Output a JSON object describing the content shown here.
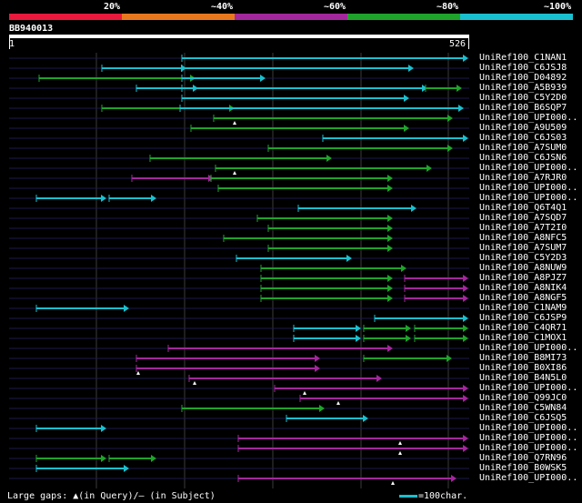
{
  "query_id": "BB940013",
  "scale": {
    "start": "1",
    "end": "526"
  },
  "identity_legend": [
    {
      "label": "20%",
      "color": "#e8193c"
    },
    {
      "label": "~40%",
      "color": "#e8781e"
    },
    {
      "label": "~60%",
      "color": "#a3279c"
    },
    {
      "label": "~80%",
      "color": "#1fa32b"
    },
    {
      "label": "~100%",
      "color": "#19c0cf"
    }
  ],
  "footer": {
    "gaps_label": "Large gaps: ▲(in Query)/– (in Subject)",
    "scale_label": "=100char.",
    "scale_color": "#19c0cf"
  },
  "colors": {
    "cyan": "#19c0cf",
    "green": "#1fa32b",
    "magenta": "#a3279c",
    "grid": "#3a3a3a",
    "row": "#1a1a4a"
  },
  "hits": [
    {
      "name": "UniRef100_C1NAN1",
      "segs": [
        [
          200,
          515,
          "cyan"
        ]
      ]
    },
    {
      "name": "UniRef100_C6JSJ8",
      "segs": [
        [
          112,
          205,
          "cyan"
        ],
        [
          200,
          455,
          "cyan"
        ]
      ]
    },
    {
      "name": "UniRef100_D04892",
      "segs": [
        [
          43,
          215,
          "green"
        ],
        [
          200,
          292,
          "cyan"
        ]
      ]
    },
    {
      "name": "UniRef100_A5B939",
      "segs": [
        [
          150,
          218,
          "cyan"
        ],
        [
          200,
          470,
          "cyan"
        ],
        [
          468,
          508,
          "green"
        ]
      ]
    },
    {
      "name": "UniRef100_C5Y2D0",
      "segs": [
        [
          200,
          450,
          "cyan"
        ]
      ]
    },
    {
      "name": "UniRef100_B6SQP7",
      "segs": [
        [
          112,
          258,
          "green"
        ],
        [
          198,
          510,
          "cyan"
        ]
      ]
    },
    {
      "name": "UniRef100_UPI000..",
      "segs": [
        [
          235,
          498,
          "green"
        ]
      ],
      "gapq": [
        258
      ]
    },
    {
      "name": "UniRef100_A9U509",
      "segs": [
        [
          210,
          450,
          "green"
        ]
      ]
    },
    {
      "name": "UniRef100_C6JS03",
      "segs": [
        [
          355,
          515,
          "cyan"
        ]
      ]
    },
    {
      "name": "UniRef100_A7SUM0",
      "segs": [
        [
          295,
          498,
          "green"
        ]
      ]
    },
    {
      "name": "UniRef100_C6JSN6",
      "segs": [
        [
          165,
          365,
          "green"
        ]
      ]
    },
    {
      "name": "UniRef100_UPI000..",
      "segs": [
        [
          237,
          475,
          "green"
        ]
      ],
      "gapq": [
        258
      ]
    },
    {
      "name": "UniRef100_A7RJR0",
      "segs": [
        [
          145,
          235,
          "magenta"
        ],
        [
          232,
          432,
          "green"
        ]
      ]
    },
    {
      "name": "UniRef100_UPI000..",
      "segs": [
        [
          240,
          432,
          "green"
        ]
      ]
    },
    {
      "name": "UniRef100_UPI000..",
      "segs": [
        [
          40,
          117,
          "cyan"
        ],
        [
          120,
          172,
          "cyan"
        ]
      ]
    },
    {
      "name": "UniRef100_Q6T4Q1",
      "segs": [
        [
          328,
          458,
          "cyan"
        ]
      ]
    },
    {
      "name": "UniRef100_A7SQD7",
      "segs": [
        [
          283,
          432,
          "green"
        ]
      ]
    },
    {
      "name": "UniRef100_A7T2I0",
      "segs": [
        [
          295,
          432,
          "green"
        ]
      ]
    },
    {
      "name": "UniRef100_A8NFC5",
      "segs": [
        [
          246,
          432,
          "green"
        ]
      ]
    },
    {
      "name": "UniRef100_A7SUM7",
      "segs": [
        [
          295,
          432,
          "green"
        ]
      ]
    },
    {
      "name": "UniRef100_C5Y2D3",
      "segs": [
        [
          260,
          387,
          "cyan"
        ]
      ]
    },
    {
      "name": "UniRef100_A8NUW9",
      "segs": [
        [
          287,
          447,
          "green"
        ]
      ]
    },
    {
      "name": "UniRef100_A8PJZ7",
      "segs": [
        [
          287,
          432,
          "green"
        ],
        [
          445,
          515,
          "magenta"
        ]
      ]
    },
    {
      "name": "UniRef100_A8NIK4",
      "segs": [
        [
          287,
          432,
          "green"
        ],
        [
          445,
          515,
          "magenta"
        ]
      ]
    },
    {
      "name": "UniRef100_A8NGF5",
      "segs": [
        [
          287,
          432,
          "green"
        ],
        [
          445,
          515,
          "magenta"
        ]
      ]
    },
    {
      "name": "UniRef100_C1NAM9",
      "segs": [
        [
          40,
          142,
          "cyan"
        ]
      ]
    },
    {
      "name": "UniRef100_C6JSP9",
      "segs": [
        [
          412,
          515,
          "cyan"
        ]
      ]
    },
    {
      "name": "UniRef100_C4QR71",
      "segs": [
        [
          323,
          397,
          "cyan"
        ],
        [
          400,
          452,
          "green"
        ],
        [
          456,
          515,
          "green"
        ]
      ]
    },
    {
      "name": "UniRef100_C1MOX1",
      "segs": [
        [
          323,
          397,
          "cyan"
        ],
        [
          400,
          452,
          "green"
        ],
        [
          456,
          515,
          "green"
        ]
      ]
    },
    {
      "name": "UniRef100_UPI000..",
      "segs": [
        [
          185,
          432,
          "magenta"
        ]
      ]
    },
    {
      "name": "UniRef100_B8MI73",
      "segs": [
        [
          150,
          352,
          "magenta"
        ],
        [
          400,
          497,
          "green"
        ]
      ]
    },
    {
      "name": "UniRef100_B0XI86",
      "segs": [
        [
          150,
          352,
          "magenta"
        ]
      ],
      "gapq": [
        152
      ]
    },
    {
      "name": "UniRef100_B4N5L0",
      "segs": [
        [
          208,
          420,
          "magenta"
        ]
      ],
      "gapq": [
        214
      ]
    },
    {
      "name": "UniRef100_UPI000..",
      "segs": [
        [
          302,
          515,
          "magenta"
        ]
      ],
      "gapq": [
        335
      ]
    },
    {
      "name": "UniRef100_Q99JC0",
      "segs": [
        [
          330,
          515,
          "magenta"
        ]
      ],
      "gapq": [
        372
      ]
    },
    {
      "name": "UniRef100_C5WN84",
      "segs": [
        [
          200,
          357,
          "green"
        ]
      ]
    },
    {
      "name": "UniRef100_C6JSQ5",
      "segs": [
        [
          315,
          405,
          "cyan"
        ]
      ]
    },
    {
      "name": "UniRef100_UPI000..",
      "segs": [
        [
          40,
          117,
          "cyan"
        ]
      ]
    },
    {
      "name": "UniRef100_UPI000..",
      "segs": [
        [
          262,
          515,
          "magenta"
        ]
      ],
      "gapq": [
        440
      ]
    },
    {
      "name": "UniRef100_UPI000..",
      "segs": [
        [
          262,
          515,
          "magenta"
        ]
      ],
      "gapq": [
        440
      ]
    },
    {
      "name": "UniRef100_Q7RN96",
      "segs": [
        [
          40,
          117,
          "green"
        ],
        [
          120,
          172,
          "green"
        ]
      ]
    },
    {
      "name": "UniRef100_B0WSK5",
      "segs": [
        [
          40,
          142,
          "cyan"
        ]
      ]
    },
    {
      "name": "UniRef100_UPI000..",
      "segs": [
        [
          262,
          502,
          "magenta"
        ]
      ],
      "gapq": [
        432
      ]
    }
  ]
}
